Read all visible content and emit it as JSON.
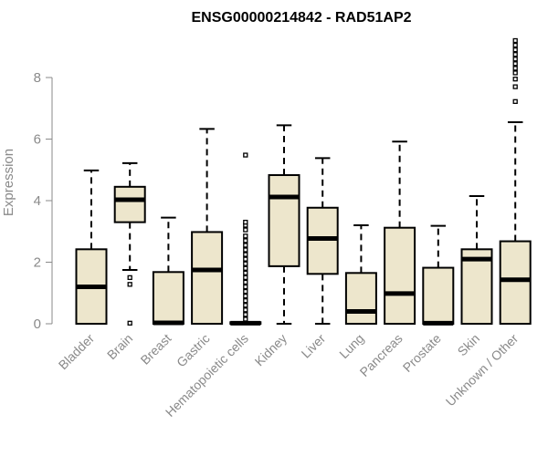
{
  "chart_data": {
    "type": "boxplot",
    "title": "ENSG00000214842 - RAD51AP2",
    "xlabel": "",
    "ylabel": "Expression",
    "ylim": [
      0,
      9.5
    ],
    "yticks": [
      0,
      2,
      4,
      6,
      8
    ],
    "grid": false,
    "colors": {
      "box_fill": "#ede6cc",
      "box_stroke": "#000000",
      "axis": "#8a8a8a",
      "text": "#8a8a8a"
    },
    "categories": [
      "Bladder",
      "Brain",
      "Breast",
      "Gastric",
      "Hematopoietic cells",
      "Kidney",
      "Liver",
      "Lung",
      "Pancreas",
      "Prostate",
      "Skin",
      "Unknown / Other"
    ],
    "boxes": [
      {
        "whisker_low": 0.0,
        "q1": 0.0,
        "median": 1.2,
        "q3": 2.42,
        "whisker_high": 4.98,
        "outliers": []
      },
      {
        "whisker_low": 1.75,
        "q1": 3.3,
        "median": 4.03,
        "q3": 4.45,
        "whisker_high": 5.22,
        "outliers": [
          1.5,
          1.28,
          0.02
        ]
      },
      {
        "whisker_low": 0.0,
        "q1": 0.0,
        "median": 0.03,
        "q3": 1.68,
        "whisker_high": 3.45,
        "outliers": []
      },
      {
        "whisker_low": 0.0,
        "q1": 0.0,
        "median": 1.75,
        "q3": 2.98,
        "whisker_high": 6.33,
        "outliers": []
      },
      {
        "whisker_low": 0.0,
        "q1": 0.0,
        "median": 0.02,
        "q3": 0.05,
        "whisker_high": 0.05,
        "outliers": [
          0.15,
          0.3,
          0.45,
          0.6,
          0.75,
          0.9,
          1.05,
          1.2,
          1.35,
          1.5,
          1.65,
          1.8,
          1.95,
          2.1,
          2.25,
          2.4,
          2.55,
          2.7,
          2.85,
          3.05,
          3.2,
          3.3,
          5.48
        ]
      },
      {
        "whisker_low": 0.0,
        "q1": 1.87,
        "median": 4.12,
        "q3": 4.83,
        "whisker_high": 6.45,
        "outliers": []
      },
      {
        "whisker_low": 0.0,
        "q1": 1.62,
        "median": 2.77,
        "q3": 3.77,
        "whisker_high": 5.38,
        "outliers": []
      },
      {
        "whisker_low": 0.0,
        "q1": 0.0,
        "median": 0.4,
        "q3": 1.65,
        "whisker_high": 3.2,
        "outliers": []
      },
      {
        "whisker_low": 0.0,
        "q1": 0.0,
        "median": 0.98,
        "q3": 3.12,
        "whisker_high": 5.92,
        "outliers": []
      },
      {
        "whisker_low": 0.0,
        "q1": 0.0,
        "median": 0.02,
        "q3": 1.82,
        "whisker_high": 3.18,
        "outliers": []
      },
      {
        "whisker_low": 0.0,
        "q1": 0.0,
        "median": 2.1,
        "q3": 2.42,
        "whisker_high": 4.15,
        "outliers": []
      },
      {
        "whisker_low": 0.0,
        "q1": 0.0,
        "median": 1.43,
        "q3": 2.68,
        "whisker_high": 6.55,
        "outliers": [
          7.22,
          7.7,
          7.95,
          8.15,
          8.3,
          8.45,
          8.6,
          8.75,
          8.9,
          9.05,
          9.2
        ]
      }
    ]
  }
}
